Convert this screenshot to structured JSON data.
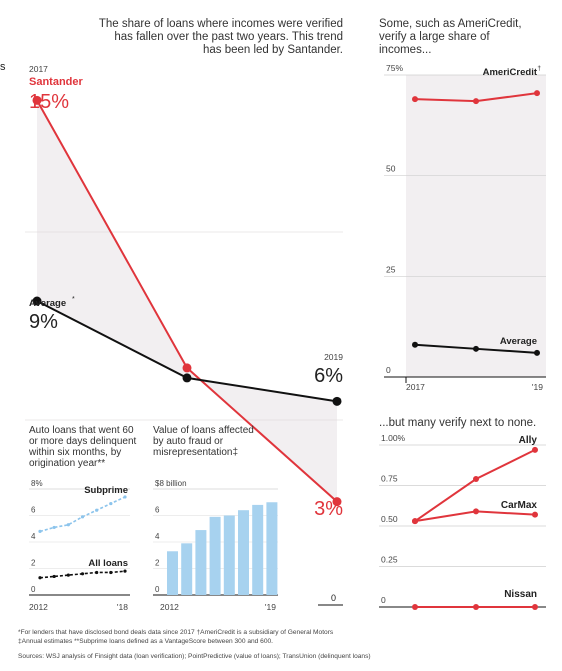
{
  "colors": {
    "red": "#e0353c",
    "black": "#111111",
    "band": "#f2eff1",
    "bar": "#a7d2ef",
    "dash": "#8cc4ec",
    "grid": "#cfcfcf"
  },
  "edge_text": "s",
  "chart_data": [
    {
      "type": "line",
      "note": "The share of loans where incomes were verified has fallen over the past two years. This trend has been led by Santander.",
      "note_lines": [
        "The share of loans where incomes were verified",
        "has fallen over the past two years. This trend",
        "has been led by Santander."
      ],
      "x": [
        2017,
        2018,
        2019
      ],
      "series": [
        {
          "name": "Santander",
          "values": [
            15,
            7,
            3
          ],
          "color": "#e0353c"
        },
        {
          "name": "Average",
          "values": [
            9,
            6.7,
            6
          ],
          "color": "#111111"
        }
      ],
      "labels": {
        "start_year": "2017",
        "santander_name": "Santander",
        "santander_start": "15%",
        "average_name": "Average",
        "average_mark": "*",
        "average_start": "9%",
        "end_year": "2019",
        "average_end": "6%",
        "santander_end": "3%",
        "zero": "0"
      }
    },
    {
      "type": "line",
      "note_lines": [
        "Some, such as AmeriCredit,",
        "verify a large share of",
        "incomes..."
      ],
      "y_ticks": [
        "75%",
        "50",
        "25",
        "0"
      ],
      "x_labels": [
        "2017",
        "'19"
      ],
      "ylim": [
        0,
        75
      ],
      "series": [
        {
          "name": "AmeriCredit",
          "mark": "†",
          "values": [
            69,
            68.5,
            70.5
          ],
          "color": "#e0353c"
        },
        {
          "name": "Average",
          "values": [
            8,
            7,
            6
          ],
          "color": "#111111"
        }
      ]
    },
    {
      "type": "line",
      "note": "...but many verify next to none.",
      "y_ticks": [
        "1.00%",
        "0.75",
        "0.50",
        "0.25",
        "0"
      ],
      "ylim": [
        0,
        1
      ],
      "series": [
        {
          "name": "Ally",
          "values": [
            0.53,
            0.79,
            0.97
          ],
          "color": "#e0353c"
        },
        {
          "name": "CarMax",
          "values": [
            0.53,
            0.59,
            0.57
          ],
          "color": "#e0353c"
        },
        {
          "name": "Nissan",
          "values": [
            0,
            0,
            0
          ],
          "color": "#e0353c"
        }
      ]
    },
    {
      "type": "line",
      "note_lines": [
        "Auto loans that went 60",
        "or more days delinquent",
        "within six months, by",
        "origination year**"
      ],
      "y_ticks": [
        "8%",
        "6",
        "4",
        "2",
        "0"
      ],
      "x_labels": [
        "2012",
        "'18"
      ],
      "ylim": [
        0,
        8
      ],
      "series": [
        {
          "name": "Subprime",
          "values": [
            4.8,
            5.1,
            5.3,
            5.9,
            6.4,
            6.9,
            7.4
          ],
          "color": "#8cc4ec"
        },
        {
          "name": "All loans",
          "values": [
            1.3,
            1.4,
            1.5,
            1.6,
            1.7,
            1.7,
            1.8
          ],
          "color": "#111111"
        }
      ]
    },
    {
      "type": "bar",
      "note_lines": [
        "Value of loans affected",
        "by auto fraud or",
        "misrepresentation‡"
      ],
      "y_ticks": [
        "$8 billion",
        "6",
        "4",
        "2",
        "0"
      ],
      "x_labels": [
        "2012",
        "'19"
      ],
      "ylim": [
        0,
        8
      ],
      "categories": [
        "2012",
        "2013",
        "2014",
        "2015",
        "2016",
        "2017",
        "2018",
        "2019"
      ],
      "values": [
        3.3,
        3.9,
        4.9,
        5.9,
        6.0,
        6.4,
        6.8,
        7.0
      ],
      "color": "#a7d2ef"
    }
  ],
  "footnotes": [
    "*For lenders that have disclosed bond deals data since 2017   †AmeriCredit is a subsidiary of General Motors",
    "‡Annual estimates   **Subprime loans defined as a VantageScore between 300 and 600.",
    "Sources: WSJ analysis of Finsight data (loan verification); PointPredictive (value of loans); TransUnion (delinquent loans)"
  ]
}
